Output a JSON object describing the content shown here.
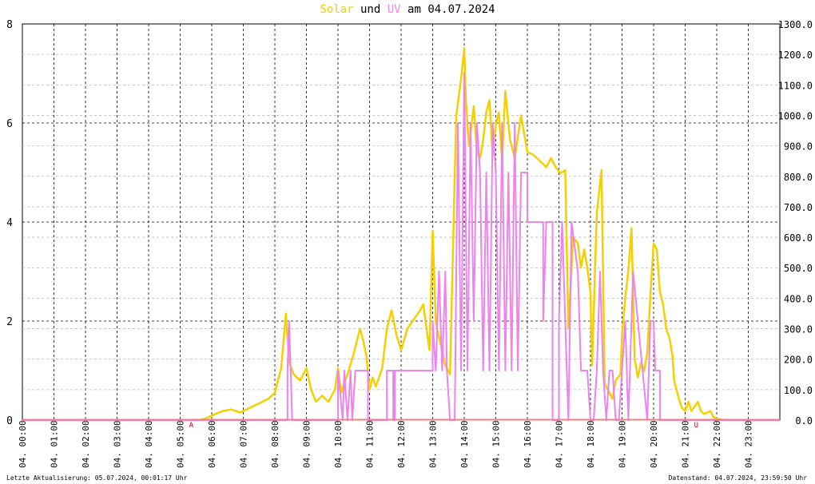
{
  "title": {
    "word_solar": "Solar",
    "word_und": "und",
    "word_uv": "UV",
    "word_am": "am",
    "date": "04.07.2024"
  },
  "colors": {
    "solar": "#f5d000",
    "uv": "#ee82ee",
    "baseline": "#f08080",
    "grid": "#000000",
    "sun_marker": "#cc0000"
  },
  "footer": {
    "left": "Letzte Aktualisierung: 05.07.2024, 00:01:17 Uhr",
    "right": "Datenstand: 04.07.2024, 23:59:50 Uhr"
  },
  "sun_markers": [
    {
      "label": "A",
      "hour": 5.35
    },
    {
      "label": "U",
      "hour": 21.35
    }
  ],
  "chart_data": {
    "type": "line",
    "x_unit": "hour",
    "x_range": [
      0,
      24
    ],
    "x_tick_labels": [
      "04. 00:00",
      "04. 01:00",
      "04. 02:00",
      "04. 03:00",
      "04. 04:00",
      "04. 05:00",
      "04. 06:00",
      "04. 07:00",
      "04. 08:00",
      "04. 09:00",
      "04. 10:00",
      "04. 11:00",
      "04. 12:00",
      "04. 13:00",
      "04. 14:00",
      "04. 15:00",
      "04. 16:00",
      "04. 17:00",
      "04. 18:00",
      "04. 19:00",
      "04. 20:00",
      "04. 21:00",
      "04. 22:00",
      "04. 23:00"
    ],
    "y_left": {
      "range": [
        0,
        8
      ],
      "ticks": [
        "0",
        "2",
        "4",
        "6",
        "8"
      ]
    },
    "y_right": {
      "range": [
        0,
        1300
      ],
      "ticks": [
        "0.0",
        "100.0",
        "200.0",
        "300.0",
        "400.0",
        "500.0",
        "600.0",
        "700.0",
        "800.0",
        "900.0",
        "1000.0",
        "1100.0",
        "1200.0",
        "1300.0"
      ]
    },
    "grid": true,
    "series": [
      {
        "name": "Solar",
        "axis": "right",
        "points": [
          [
            0,
            0
          ],
          [
            5.6,
            0
          ],
          [
            5.8,
            5
          ],
          [
            6.0,
            15
          ],
          [
            6.3,
            28
          ],
          [
            6.6,
            35
          ],
          [
            6.9,
            25
          ],
          [
            7.2,
            40
          ],
          [
            7.5,
            55
          ],
          [
            7.8,
            70
          ],
          [
            8.0,
            90
          ],
          [
            8.2,
            170
          ],
          [
            8.35,
            350
          ],
          [
            8.45,
            190
          ],
          [
            8.6,
            150
          ],
          [
            8.8,
            130
          ],
          [
            9.0,
            170
          ],
          [
            9.15,
            100
          ],
          [
            9.3,
            60
          ],
          [
            9.5,
            80
          ],
          [
            9.7,
            60
          ],
          [
            9.9,
            100
          ],
          [
            10.0,
            170
          ],
          [
            10.1,
            90
          ],
          [
            10.3,
            150
          ],
          [
            10.5,
            220
          ],
          [
            10.7,
            300
          ],
          [
            10.8,
            260
          ],
          [
            10.9,
            210
          ],
          [
            11.0,
            100
          ],
          [
            11.1,
            140
          ],
          [
            11.2,
            110
          ],
          [
            11.4,
            170
          ],
          [
            11.55,
            300
          ],
          [
            11.7,
            360
          ],
          [
            11.85,
            280
          ],
          [
            12.0,
            230
          ],
          [
            12.2,
            300
          ],
          [
            12.4,
            330
          ],
          [
            12.6,
            360
          ],
          [
            12.7,
            380
          ],
          [
            12.9,
            230
          ],
          [
            13.0,
            620
          ],
          [
            13.1,
            320
          ],
          [
            13.25,
            250
          ],
          [
            13.4,
            180
          ],
          [
            13.55,
            150
          ],
          [
            13.7,
            800
          ],
          [
            13.75,
            1000
          ],
          [
            13.9,
            1120
          ],
          [
            14.0,
            1220
          ],
          [
            14.05,
            1050
          ],
          [
            14.15,
            900
          ],
          [
            14.3,
            1030
          ],
          [
            14.4,
            880
          ],
          [
            14.5,
            860
          ],
          [
            14.6,
            920
          ],
          [
            14.7,
            1010
          ],
          [
            14.8,
            1050
          ],
          [
            14.9,
            870
          ],
          [
            15.0,
            970
          ],
          [
            15.1,
            1010
          ],
          [
            15.2,
            850
          ],
          [
            15.3,
            1080
          ],
          [
            15.45,
            920
          ],
          [
            15.6,
            860
          ],
          [
            15.8,
            1000
          ],
          [
            16.0,
            880
          ],
          [
            16.2,
            870
          ],
          [
            16.4,
            850
          ],
          [
            16.6,
            830
          ],
          [
            16.75,
            860
          ],
          [
            16.9,
            830
          ],
          [
            17.05,
            810
          ],
          [
            17.2,
            820
          ],
          [
            17.3,
            300
          ],
          [
            17.45,
            600
          ],
          [
            17.6,
            580
          ],
          [
            17.7,
            500
          ],
          [
            17.8,
            560
          ],
          [
            17.9,
            500
          ],
          [
            18.0,
            420
          ],
          [
            18.05,
            180
          ],
          [
            18.2,
            680
          ],
          [
            18.35,
            820
          ],
          [
            18.45,
            120
          ],
          [
            18.55,
            100
          ],
          [
            18.7,
            70
          ],
          [
            18.8,
            130
          ],
          [
            18.95,
            150
          ],
          [
            19.0,
            280
          ],
          [
            19.1,
            400
          ],
          [
            19.2,
            490
          ],
          [
            19.3,
            630
          ],
          [
            19.4,
            200
          ],
          [
            19.5,
            140
          ],
          [
            19.6,
            190
          ],
          [
            19.7,
            160
          ],
          [
            19.8,
            220
          ],
          [
            19.9,
            410
          ],
          [
            20.0,
            580
          ],
          [
            20.1,
            560
          ],
          [
            20.2,
            420
          ],
          [
            20.3,
            380
          ],
          [
            20.4,
            300
          ],
          [
            20.5,
            270
          ],
          [
            20.6,
            210
          ],
          [
            20.65,
            130
          ],
          [
            20.8,
            70
          ],
          [
            20.9,
            40
          ],
          [
            21.0,
            30
          ],
          [
            21.1,
            60
          ],
          [
            21.2,
            30
          ],
          [
            21.4,
            60
          ],
          [
            21.5,
            30
          ],
          [
            21.6,
            20
          ],
          [
            21.8,
            30
          ],
          [
            21.9,
            10
          ],
          [
            22.0,
            5
          ],
          [
            22.2,
            0
          ],
          [
            24,
            0
          ]
        ]
      },
      {
        "name": "UV",
        "axis": "left",
        "points": [
          [
            0,
            0
          ],
          [
            8.4,
            0
          ],
          [
            8.4,
            1
          ],
          [
            8.45,
            2
          ],
          [
            8.5,
            1
          ],
          [
            8.55,
            0
          ],
          [
            10.0,
            0
          ],
          [
            10.0,
            1
          ],
          [
            10.15,
            0
          ],
          [
            10.2,
            1
          ],
          [
            10.3,
            0
          ],
          [
            10.4,
            1
          ],
          [
            10.45,
            0
          ],
          [
            10.55,
            1
          ],
          [
            10.95,
            1
          ],
          [
            10.95,
            0
          ],
          [
            11.55,
            0
          ],
          [
            11.55,
            1
          ],
          [
            11.75,
            1
          ],
          [
            11.75,
            0
          ],
          [
            11.8,
            0
          ],
          [
            11.8,
            1
          ],
          [
            13.0,
            1
          ],
          [
            13.0,
            2
          ],
          [
            13.1,
            1
          ],
          [
            13.2,
            3
          ],
          [
            13.3,
            1
          ],
          [
            13.4,
            3
          ],
          [
            13.45,
            1
          ],
          [
            13.55,
            0
          ],
          [
            13.7,
            0
          ],
          [
            13.8,
            6
          ],
          [
            13.9,
            1
          ],
          [
            14.0,
            7
          ],
          [
            14.1,
            1
          ],
          [
            14.2,
            6
          ],
          [
            14.3,
            2
          ],
          [
            14.4,
            6
          ],
          [
            14.5,
            5
          ],
          [
            14.6,
            1
          ],
          [
            14.7,
            5
          ],
          [
            14.8,
            1
          ],
          [
            14.9,
            6
          ],
          [
            15.0,
            5
          ],
          [
            15.1,
            1
          ],
          [
            15.2,
            6
          ],
          [
            15.3,
            1
          ],
          [
            15.4,
            5
          ],
          [
            15.5,
            1
          ],
          [
            15.6,
            6
          ],
          [
            15.7,
            1
          ],
          [
            15.8,
            5
          ],
          [
            16.0,
            5
          ],
          [
            16.0,
            4
          ],
          [
            16.5,
            4
          ],
          [
            16.5,
            2
          ],
          [
            16.6,
            4
          ],
          [
            16.8,
            4
          ],
          [
            16.8,
            0
          ],
          [
            17.0,
            0
          ],
          [
            17.0,
            2
          ],
          [
            17.1,
            4
          ],
          [
            17.2,
            2
          ],
          [
            17.3,
            0
          ],
          [
            17.4,
            4
          ],
          [
            17.6,
            3
          ],
          [
            17.7,
            1
          ],
          [
            17.9,
            1
          ],
          [
            18.0,
            0
          ],
          [
            18.1,
            0
          ],
          [
            18.2,
            1
          ],
          [
            18.3,
            3
          ],
          [
            18.4,
            1
          ],
          [
            18.5,
            0
          ],
          [
            18.6,
            1
          ],
          [
            18.7,
            1
          ],
          [
            18.8,
            0
          ],
          [
            18.9,
            0
          ],
          [
            19.0,
            1
          ],
          [
            19.1,
            2
          ],
          [
            19.2,
            0
          ],
          [
            19.35,
            3
          ],
          [
            19.5,
            2
          ],
          [
            19.65,
            1
          ],
          [
            19.8,
            0
          ],
          [
            19.9,
            2
          ],
          [
            20.0,
            2
          ],
          [
            20.05,
            1
          ],
          [
            20.2,
            1
          ],
          [
            20.2,
            0
          ],
          [
            24,
            0
          ]
        ]
      }
    ]
  }
}
